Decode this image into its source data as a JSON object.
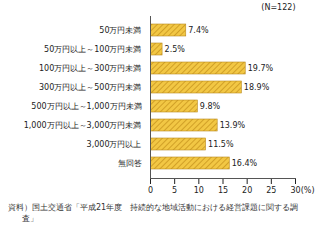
{
  "chart_data": {
    "type": "bar",
    "orientation": "horizontal",
    "categories": [
      "50万円未満",
      "50万円以上～100万円未満",
      "100万円以上～300万円未満",
      "300万円以上～500万円未満",
      "500万円以上～1,000万円未満",
      "1,000万円以上～3,000万円未満",
      "3,000万円以上",
      "無回答"
    ],
    "values": [
      7.4,
      2.5,
      19.7,
      18.9,
      9.8,
      13.9,
      11.5,
      16.4
    ],
    "value_labels": [
      "7.4%",
      "2.5%",
      "19.7%",
      "18.9%",
      "9.8%",
      "13.9%",
      "11.5%",
      "16.4%"
    ],
    "data_labels": true,
    "color": "#f2c744",
    "xlim": [
      0,
      30
    ],
    "xticks": [
      0,
      5,
      10,
      15,
      20,
      25,
      30
    ],
    "x_label": "(%)",
    "annotation": "(N=122)",
    "caption": "資料）国土交通省「平成21年度　持続的な地域活動における経営課題に関する調査」",
    "grid": false
  }
}
